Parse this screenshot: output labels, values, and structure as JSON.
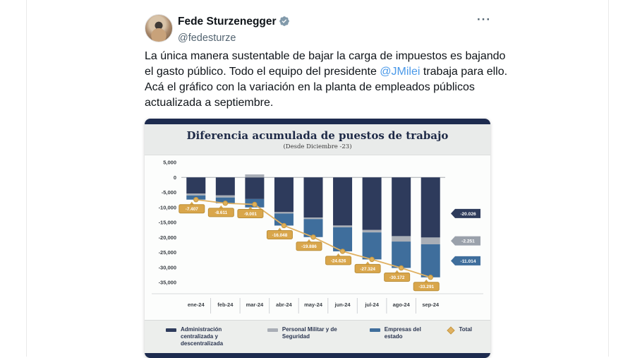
{
  "tweet": {
    "author": {
      "name": "Fede Sturzenegger",
      "handle": "@fedesturze",
      "verified_badge": "gray-checkmark"
    },
    "more_label": "···",
    "text": {
      "part1": "La única manera sustentable de bajar la carga de impuestos es bajando el gasto público. Todo el equipo del presidente ",
      "mention": "@JMilei",
      "part2": " trabaja para ello. Acá el gráfico con la variación en la planta de empleados públicos actualizada a septiembre."
    }
  },
  "chart": {
    "title": "Diferencia acumulada de puestos de trabajo",
    "subtitle": "(Desde Diciembre -23)"
  },
  "chart_data": {
    "type": "bar",
    "stacked": true,
    "title": "Diferencia acumulada de puestos de trabajo",
    "subtitle": "(Desde Diciembre -23)",
    "categories": [
      "ene-24",
      "feb-24",
      "mar-24",
      "abr-24",
      "may-24",
      "jun-24",
      "jul-24",
      "ago-24",
      "sep-24"
    ],
    "series": [
      {
        "name": "Administración centralizada y descentralizada",
        "color": "#2e3b5c",
        "values": [
          -5400,
          -6000,
          -7200,
          -11548,
          -13386,
          -16026,
          -17524,
          -19572,
          -20026
        ]
      },
      {
        "name": "Personal Militar y de Seguridad",
        "color": "#a9aeb6",
        "values": [
          -600,
          -700,
          1000,
          -500,
          -500,
          -600,
          -800,
          -1800,
          -2251
        ]
      },
      {
        "name": "Empresas del estado",
        "color": "#3f6e9c",
        "values": [
          -1407,
          -1911,
          -2801,
          -4000,
          -6000,
          -8000,
          -9000,
          -8800,
          -11014
        ]
      },
      {
        "name": "Total",
        "type": "line",
        "color": "#e0b162",
        "values": [
          -7407,
          -8611,
          -9001,
          -16048,
          -19886,
          -24626,
          -27324,
          -30172,
          -33291
        ],
        "labels": [
          "-7.407",
          "-8.611",
          "-9.001",
          "-16.048",
          "-19.886",
          "-24.626",
          "-27.324",
          "-30.172",
          "-33.291"
        ]
      }
    ],
    "end_labels": [
      {
        "text": "-20.026",
        "color": "#2e3b5c"
      },
      {
        "text": "-2.251",
        "color": "#9aa1ab"
      },
      {
        "text": "-11.014",
        "color": "#3f6e9c"
      }
    ],
    "y_ticks": [
      "5,000",
      "0",
      "-5,000",
      "-10,000",
      "-15,000",
      "-20,000",
      "-25,000",
      "-30,000",
      "-35,000"
    ],
    "y_tick_values": [
      5000,
      0,
      -5000,
      -10000,
      -15000,
      -20000,
      -25000,
      -30000,
      -35000
    ],
    "ylim": [
      5000,
      -37000
    ],
    "grid": false,
    "legend_position": "bottom",
    "badge_fill": "#d9a64b",
    "badge_stroke": "#bb8f3a",
    "line_color": "#e0b162",
    "marker_fill": "#dfaf58",
    "marker_stroke": "#c59843"
  }
}
